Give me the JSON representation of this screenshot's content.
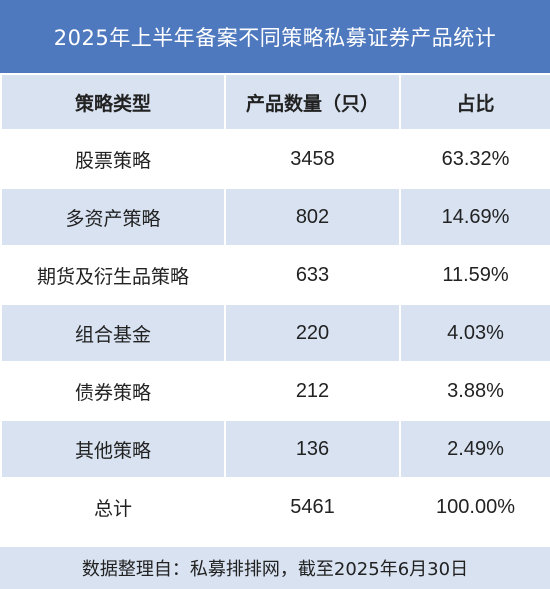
{
  "title": "2025年上半年备案不同策略私募证券产品统计",
  "table": {
    "headers": [
      "策略类型",
      "产品数量（只）",
      "占比"
    ],
    "rows": [
      [
        "股票策略",
        "3458",
        "63.32%"
      ],
      [
        "多资产策略",
        "802",
        "14.69%"
      ],
      [
        "期货及衍生品策略",
        "633",
        "11.59%"
      ],
      [
        "组合基金",
        "220",
        "4.03%"
      ],
      [
        "债券策略",
        "212",
        "3.88%"
      ],
      [
        "其他策略",
        "136",
        "2.49%"
      ],
      [
        "总计",
        "5461",
        "100.00%"
      ]
    ]
  },
  "footnote": "数据整理自：私募排排网，截至2025年6月30日",
  "colors": {
    "title_bg": "#4f79be",
    "band_bg": "#d8e2f1",
    "text": "#222222"
  }
}
